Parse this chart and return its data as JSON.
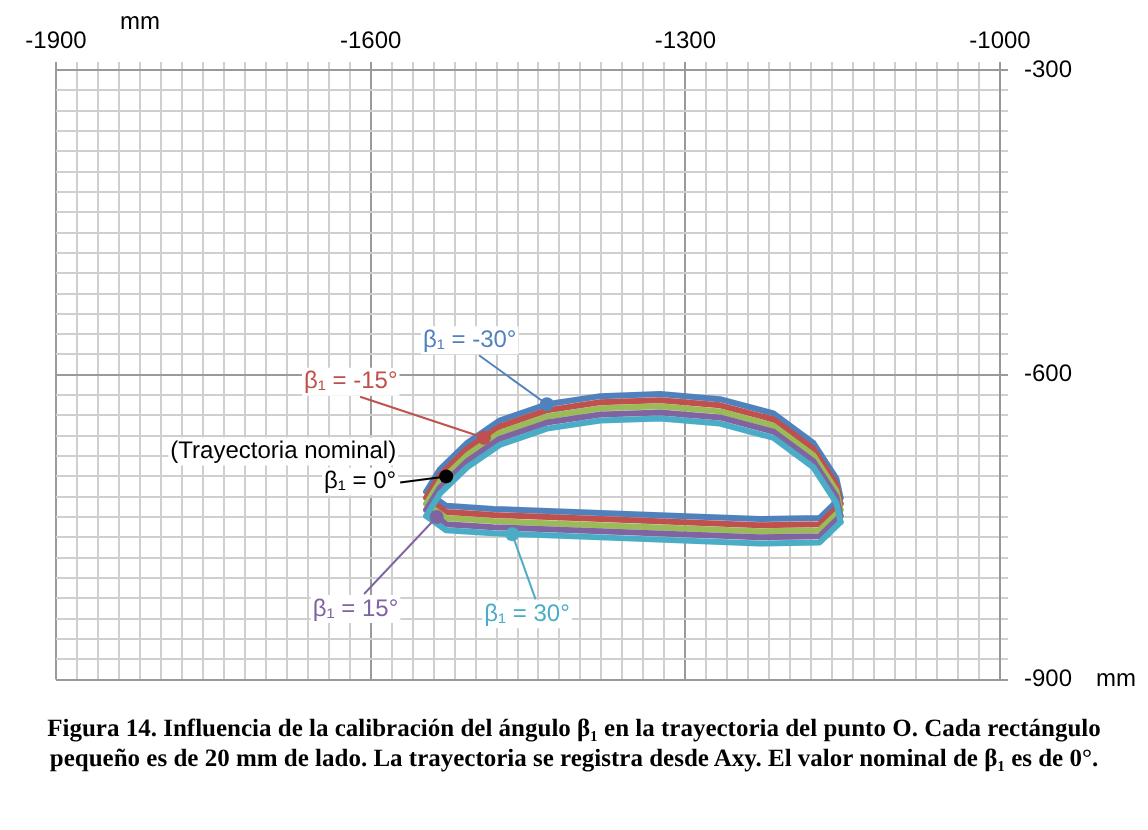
{
  "chart_data": {
    "type": "line",
    "title": "Figura 14. Influencia de la calibración del ángulo β₁ en la trayectoria del punto O. Cada rectángulo pequeño es de 20 mm de lado. La trayectoria se registra desde Axy. El valor nominal de β₁ es de 0°.",
    "xlabel": "mm",
    "ylabel": "mm",
    "series": [
      {
        "color": "#4bacc6",
        "x": [
          -1547,
          -1534,
          -1508,
          -1477,
          -1432,
          -1381,
          -1324,
          -1267,
          -1216,
          -1178,
          -1156,
          -1152
        ],
        "values": [
          -739,
          -717,
          -691,
          -669,
          -653,
          -645,
          -643,
          -648,
          -662,
          -691,
          -726,
          -745
        ]
      },
      {
        "color": "#4bacc6",
        "x": [
          -1547,
          -1528,
          -1483,
          -1356,
          -1229,
          -1172,
          -1152
        ],
        "values": [
          -739,
          -753,
          -756,
          -761,
          -766,
          -765,
          -745
        ]
      },
      {
        "color": "#8064a2",
        "x": [
          -1547,
          -1534,
          -1508,
          -1477,
          -1432,
          -1381,
          -1324,
          -1267,
          -1216,
          -1178,
          -1156,
          -1152
        ],
        "values": [
          -733,
          -711,
          -685,
          -663,
          -647,
          -639,
          -637,
          -642,
          -656,
          -685,
          -720,
          -739
        ]
      },
      {
        "color": "#8064a2",
        "x": [
          -1547,
          -1528,
          -1483,
          -1356,
          -1229,
          -1172,
          -1152
        ],
        "values": [
          -733,
          -747,
          -750,
          -755,
          -760,
          -759,
          -739
        ]
      },
      {
        "color": "#9bbb59",
        "x": [
          -1547,
          -1534,
          -1508,
          -1477,
          -1432,
          -1381,
          -1324,
          -1267,
          -1216,
          -1178,
          -1156,
          -1152
        ],
        "values": [
          -727,
          -705,
          -679,
          -657,
          -641,
          -633,
          -631,
          -636,
          -650,
          -679,
          -714,
          -733
        ]
      },
      {
        "color": "#9bbb59",
        "x": [
          -1547,
          -1528,
          -1483,
          -1356,
          -1229,
          -1172,
          -1152
        ],
        "values": [
          -727,
          -741,
          -744,
          -749,
          -754,
          -753,
          -733
        ]
      },
      {
        "color": "#c0504d",
        "x": [
          -1547,
          -1534,
          -1508,
          -1477,
          -1432,
          -1381,
          -1324,
          -1267,
          -1216,
          -1178,
          -1156,
          -1152
        ],
        "values": [
          -721,
          -699,
          -673,
          -651,
          -635,
          -627,
          -625,
          -630,
          -644,
          -673,
          -708,
          -727
        ]
      },
      {
        "color": "#c0504d",
        "x": [
          -1547,
          -1528,
          -1483,
          -1356,
          -1229,
          -1172,
          -1152
        ],
        "values": [
          -721,
          -735,
          -738,
          -743,
          -748,
          -747,
          -727
        ]
      },
      {
        "color": "#4f81bd",
        "x": [
          -1547,
          -1534,
          -1508,
          -1477,
          -1432,
          -1381,
          -1324,
          -1267,
          -1216,
          -1178,
          -1156,
          -1152
        ],
        "values": [
          -715,
          -693,
          -667,
          -645,
          -629,
          -621,
          -619,
          -624,
          -638,
          -667,
          -702,
          -721
        ]
      },
      {
        "color": "#4f81bd",
        "x": [
          -1547,
          -1528,
          -1483,
          -1356,
          -1229,
          -1172,
          -1152
        ],
        "values": [
          -715,
          -729,
          -732,
          -737,
          -742,
          -741,
          -721
        ]
      }
    ],
    "annotations": [
      {
        "text": "β₁ = -30°",
        "x": -1432,
        "y": -629
      },
      {
        "text": "β₁ = -15°",
        "x": -1492,
        "y": -662
      },
      {
        "text": "(Trayectoria nominal) β₁ = 0°",
        "x": -1528,
        "y": -700
      },
      {
        "text": "β₁ = 15°",
        "x": -1537,
        "y": -740
      },
      {
        "text": "β₁ = 30°",
        "x": -1465,
        "y": -757
      }
    ],
    "xlim": [
      -1900,
      -1000
    ],
    "xticks": [
      -1900,
      {
        "value": -1880,
        "label": null
      },
      {
        "value": -1860,
        "label": null
      },
      {
        "value": -1840,
        "label": null
      },
      {
        "value": -1820,
        "label": null
      },
      {
        "value": -1800,
        "label": null
      },
      {
        "value": -1780,
        "label": null
      },
      {
        "value": -1760,
        "label": null
      },
      {
        "value": -1740,
        "label": null
      },
      {
        "value": -1720,
        "label": null
      },
      {
        "value": -1700,
        "label": null
      },
      {
        "value": -1680,
        "label": null
      },
      {
        "value": -1660,
        "label": null
      },
      {
        "value": -1640,
        "label": null
      },
      {
        "value": -1620,
        "label": null
      },
      -1600,
      {
        "value": -1580,
        "label": null
      },
      {
        "value": -1560,
        "label": null
      },
      {
        "value": -1540,
        "label": null
      },
      {
        "value": -1520,
        "label": null
      },
      {
        "value": -1500,
        "label": null
      },
      {
        "value": -1480,
        "label": null
      },
      {
        "value": -1460,
        "label": null
      },
      {
        "value": -1440,
        "label": null
      },
      {
        "value": -1420,
        "label": null
      },
      {
        "value": -1400,
        "label": null
      },
      {
        "value": -1380,
        "label": null
      },
      {
        "value": -1360,
        "label": null
      },
      {
        "value": -1340,
        "label": null
      },
      {
        "value": -1320,
        "label": null
      },
      -1300,
      {
        "value": -1280,
        "label": null
      },
      {
        "value": -1260,
        "label": null
      },
      {
        "value": -1240,
        "label": null
      },
      {
        "value": -1220,
        "label": null
      },
      {
        "value": -1200,
        "label": null
      },
      {
        "value": -1180,
        "label": null
      },
      {
        "value": -1160,
        "label": null
      },
      {
        "value": -1140,
        "label": null
      },
      {
        "value": -1120,
        "label": null
      },
      {
        "value": -1100,
        "label": null
      },
      {
        "value": -1080,
        "label": null
      },
      {
        "value": -1060,
        "label": null
      },
      {
        "value": -1040,
        "label": null
      },
      {
        "value": -1020,
        "label": null
      },
      -1000
    ],
    "ylim": [
      -900,
      -300
    ],
    "yticks": [
      -900,
      {
        "value": -880,
        "label": null
      },
      {
        "value": -860,
        "label": null
      },
      {
        "value": -840,
        "label": null
      },
      {
        "value": -820,
        "label": null
      },
      {
        "value": -800,
        "label": null
      },
      {
        "value": -780,
        "label": null
      },
      {
        "value": -760,
        "label": null
      },
      {
        "value": -740,
        "label": null
      },
      {
        "value": -720,
        "label": null
      },
      {
        "value": -700,
        "label": null
      },
      {
        "value": -680,
        "label": null
      },
      {
        "value": -660,
        "label": null
      },
      {
        "value": -640,
        "label": null
      },
      {
        "value": -620,
        "label": null
      },
      -600,
      {
        "value": -580,
        "label": null
      },
      {
        "value": -560,
        "label": null
      },
      {
        "value": -540,
        "label": null
      },
      {
        "value": -520,
        "label": null
      },
      {
        "value": -500,
        "label": null
      },
      {
        "value": -480,
        "label": null
      },
      {
        "value": -460,
        "label": null
      },
      {
        "value": -440,
        "label": null
      },
      {
        "value": -420,
        "label": null
      },
      {
        "value": -400,
        "label": null
      },
      {
        "value": -380,
        "label": null
      },
      {
        "value": -360,
        "label": null
      },
      {
        "value": -340,
        "label": null
      },
      {
        "value": -320,
        "label": null
      },
      -300
    ],
    "grid": true,
    "legend": false,
    "marker": "none",
    "line_style": "solid"
  }
}
